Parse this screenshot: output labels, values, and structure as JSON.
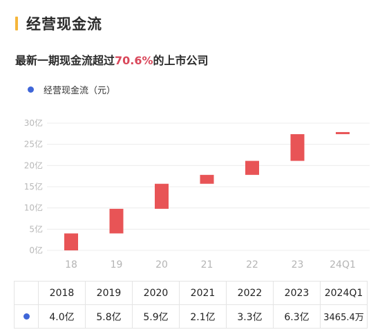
{
  "header": {
    "title": "经营现金流"
  },
  "subtitle": {
    "prefix": "最新一期现金流超过",
    "highlight": "70.6%",
    "suffix": "的上市公司"
  },
  "legend": {
    "label": "经营现金流（元）"
  },
  "colors": {
    "accent_bar": "#f5b63b",
    "bar": "#e85456",
    "highlight": "#d9485b",
    "legend_dot": "#3f66d8"
  },
  "chart_data": {
    "type": "bar",
    "subtype": "waterfall",
    "categories": [
      "18",
      "19",
      "20",
      "21",
      "22",
      "23",
      "24Q1"
    ],
    "series": [
      {
        "name": "经营现金流（元）",
        "values": [
          4.0,
          5.8,
          5.9,
          2.1,
          3.3,
          6.3,
          0.34654
        ]
      }
    ],
    "value_labels": [
      "4.0亿",
      "5.8亿",
      "5.9亿",
      "2.1亿",
      "3.3亿",
      "6.3亿",
      "3465.4万"
    ],
    "cumulative_start": [
      0,
      4.0,
      9.8,
      15.7,
      17.8,
      21.1,
      27.4
    ],
    "y_ticks": [
      "0亿",
      "5亿",
      "10亿",
      "15亿",
      "20亿",
      "25亿",
      "30亿"
    ],
    "ylim": [
      0,
      30
    ],
    "grid": true,
    "legend_position": "top-left"
  },
  "table": {
    "years": [
      "2018",
      "2019",
      "2020",
      "2021",
      "2022",
      "2023",
      "2024Q1"
    ],
    "values": [
      "4.0亿",
      "5.8亿",
      "5.9亿",
      "2.1亿",
      "3.3亿",
      "6.3亿",
      "3465.4万"
    ]
  }
}
